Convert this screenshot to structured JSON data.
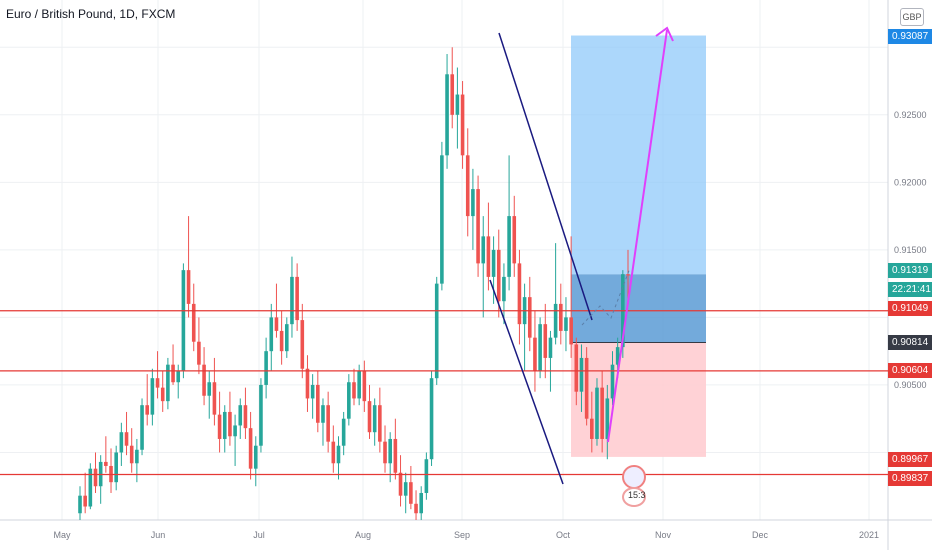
{
  "header": {
    "title": "Euro / British Pound, 1D, FXCM",
    "currency_label": "GBP"
  },
  "price_axis": {
    "ticks": [
      "0.92500",
      "0.92000",
      "0.91500",
      "0.90500"
    ],
    "top_label": "0.93087"
  },
  "time_axis": {
    "labels": [
      "May",
      "Jun",
      "Jul",
      "Aug",
      "Sep",
      "Oct",
      "Nov",
      "Dec",
      "2021"
    ]
  },
  "price_badges": [
    {
      "text": "0.91319",
      "color": "#26a69a"
    },
    {
      "text": "22:21:41",
      "color": "#26a69a"
    },
    {
      "text": "0.91049",
      "color": "#e53935"
    },
    {
      "text": "0.90814",
      "color": "#363a45"
    },
    {
      "text": "0.90604",
      "color": "#e53935"
    },
    {
      "text": "0.89967",
      "color": "#e53935"
    },
    {
      "text": "0.89837",
      "color": "#e53935"
    }
  ],
  "event_label": "15:3",
  "colors": {
    "up": "#26a69a",
    "down": "#ef5350",
    "support_line": "#e53935",
    "channel": "#1a1a80",
    "arrow": "#e040fb",
    "target_zone": "#90caf9",
    "entry_zone": "#5b9bd5",
    "stop_zone": "#ffcdd2"
  },
  "chart_data": {
    "type": "candlestick",
    "symbol": "Euro / British Pound",
    "timeframe": "1D",
    "y_range": [
      0.895,
      0.9335
    ],
    "x_labels": [
      "May",
      "Jun",
      "Jul",
      "Aug",
      "Sep",
      "Oct",
      "Nov",
      "Dec",
      "2021"
    ],
    "horizontal_levels": [
      0.91049,
      0.90604,
      0.89837
    ],
    "position": {
      "entry": 0.90814,
      "target": 0.93087,
      "stop": 0.89967,
      "current": 0.91319
    },
    "candles": [
      [
        0.8955,
        0.8975,
        0.895,
        0.8968
      ],
      [
        0.8968,
        0.8985,
        0.8955,
        0.896
      ],
      [
        0.896,
        0.8992,
        0.8958,
        0.8988
      ],
      [
        0.8988,
        0.9,
        0.897,
        0.8975
      ],
      [
        0.8975,
        0.8998,
        0.8962,
        0.8993
      ],
      [
        0.8993,
        0.9012,
        0.8985,
        0.899
      ],
      [
        0.899,
        0.9003,
        0.897,
        0.8978
      ],
      [
        0.8978,
        0.9005,
        0.8972,
        0.9
      ],
      [
        0.9,
        0.9022,
        0.899,
        0.9015
      ],
      [
        0.9015,
        0.903,
        0.8998,
        0.9005
      ],
      [
        0.9005,
        0.9018,
        0.8985,
        0.8992
      ],
      [
        0.8992,
        0.901,
        0.8978,
        0.9002
      ],
      [
        0.9002,
        0.904,
        0.8998,
        0.9035
      ],
      [
        0.9035,
        0.9058,
        0.902,
        0.9028
      ],
      [
        0.9028,
        0.9062,
        0.902,
        0.9055
      ],
      [
        0.9055,
        0.9075,
        0.904,
        0.9048
      ],
      [
        0.9048,
        0.906,
        0.903,
        0.9038
      ],
      [
        0.9038,
        0.907,
        0.9032,
        0.9065
      ],
      [
        0.9065,
        0.908,
        0.905,
        0.9052
      ],
      [
        0.9052,
        0.9065,
        0.904,
        0.906
      ],
      [
        0.906,
        0.914,
        0.9055,
        0.9135
      ],
      [
        0.9135,
        0.9175,
        0.91,
        0.911
      ],
      [
        0.911,
        0.9125,
        0.9075,
        0.9082
      ],
      [
        0.9082,
        0.91,
        0.9058,
        0.9065
      ],
      [
        0.9065,
        0.9078,
        0.9035,
        0.9042
      ],
      [
        0.9042,
        0.906,
        0.9025,
        0.9052
      ],
      [
        0.9052,
        0.907,
        0.902,
        0.9028
      ],
      [
        0.9028,
        0.9045,
        0.9,
        0.901
      ],
      [
        0.901,
        0.9035,
        0.9,
        0.903
      ],
      [
        0.903,
        0.9045,
        0.9005,
        0.9012
      ],
      [
        0.9012,
        0.9028,
        0.899,
        0.902
      ],
      [
        0.902,
        0.904,
        0.901,
        0.9035
      ],
      [
        0.9035,
        0.9048,
        0.901,
        0.9018
      ],
      [
        0.9018,
        0.903,
        0.898,
        0.8988
      ],
      [
        0.8988,
        0.9012,
        0.8975,
        0.9005
      ],
      [
        0.9005,
        0.9055,
        0.9,
        0.905
      ],
      [
        0.905,
        0.9085,
        0.904,
        0.9075
      ],
      [
        0.9075,
        0.911,
        0.906,
        0.91
      ],
      [
        0.91,
        0.9125,
        0.9085,
        0.909
      ],
      [
        0.909,
        0.9105,
        0.9065,
        0.9075
      ],
      [
        0.9075,
        0.91,
        0.907,
        0.9095
      ],
      [
        0.9095,
        0.9145,
        0.9085,
        0.913
      ],
      [
        0.913,
        0.914,
        0.909,
        0.9098
      ],
      [
        0.9098,
        0.911,
        0.9055,
        0.9062
      ],
      [
        0.9062,
        0.9072,
        0.903,
        0.904
      ],
      [
        0.904,
        0.9058,
        0.9025,
        0.905
      ],
      [
        0.905,
        0.906,
        0.9015,
        0.9022
      ],
      [
        0.9022,
        0.904,
        0.9005,
        0.9035
      ],
      [
        0.9035,
        0.9045,
        0.9,
        0.9008
      ],
      [
        0.9008,
        0.902,
        0.8985,
        0.8992
      ],
      [
        0.8992,
        0.9012,
        0.898,
        0.9005
      ],
      [
        0.9005,
        0.903,
        0.8998,
        0.9025
      ],
      [
        0.9025,
        0.9058,
        0.902,
        0.9052
      ],
      [
        0.9052,
        0.9062,
        0.9035,
        0.904
      ],
      [
        0.904,
        0.9065,
        0.9035,
        0.906
      ],
      [
        0.906,
        0.9068,
        0.903,
        0.9038
      ],
      [
        0.9038,
        0.905,
        0.901,
        0.9015
      ],
      [
        0.9015,
        0.904,
        0.9005,
        0.9035
      ],
      [
        0.9035,
        0.9048,
        0.9,
        0.9008
      ],
      [
        0.9008,
        0.902,
        0.8985,
        0.8992
      ],
      [
        0.8992,
        0.9015,
        0.8978,
        0.901
      ],
      [
        0.901,
        0.9025,
        0.898,
        0.8985
      ],
      [
        0.8985,
        0.8998,
        0.896,
        0.8968
      ],
      [
        0.8968,
        0.8985,
        0.8955,
        0.8978
      ],
      [
        0.8978,
        0.899,
        0.8958,
        0.8962
      ],
      [
        0.8962,
        0.8972,
        0.895,
        0.8955
      ],
      [
        0.8955,
        0.8975,
        0.895,
        0.897
      ],
      [
        0.897,
        0.9,
        0.8965,
        0.8995
      ],
      [
        0.8995,
        0.906,
        0.899,
        0.9055
      ],
      [
        0.9055,
        0.913,
        0.905,
        0.9125
      ],
      [
        0.9125,
        0.923,
        0.912,
        0.922
      ],
      [
        0.922,
        0.9295,
        0.921,
        0.928
      ],
      [
        0.928,
        0.93,
        0.924,
        0.925
      ],
      [
        0.925,
        0.9285,
        0.9225,
        0.9265
      ],
      [
        0.9265,
        0.9275,
        0.921,
        0.922
      ],
      [
        0.922,
        0.924,
        0.916,
        0.9175
      ],
      [
        0.9175,
        0.921,
        0.915,
        0.9195
      ],
      [
        0.9195,
        0.9205,
        0.913,
        0.914
      ],
      [
        0.914,
        0.9175,
        0.91,
        0.916
      ],
      [
        0.916,
        0.9185,
        0.912,
        0.913
      ],
      [
        0.913,
        0.916,
        0.911,
        0.915
      ],
      [
        0.915,
        0.9165,
        0.91,
        0.9112
      ],
      [
        0.9112,
        0.914,
        0.9095,
        0.913
      ],
      [
        0.913,
        0.922,
        0.912,
        0.9175
      ],
      [
        0.9175,
        0.919,
        0.913,
        0.914
      ],
      [
        0.914,
        0.915,
        0.908,
        0.9095
      ],
      [
        0.9095,
        0.9125,
        0.906,
        0.9115
      ],
      [
        0.9115,
        0.913,
        0.9075,
        0.9085
      ],
      [
        0.9085,
        0.9105,
        0.9045,
        0.906
      ],
      [
        0.906,
        0.91,
        0.9055,
        0.9095
      ],
      [
        0.9095,
        0.911,
        0.9055,
        0.907
      ],
      [
        0.907,
        0.909,
        0.9045,
        0.9085
      ],
      [
        0.9085,
        0.9155,
        0.908,
        0.911
      ],
      [
        0.911,
        0.9125,
        0.908,
        0.909
      ],
      [
        0.909,
        0.9115,
        0.9075,
        0.91
      ],
      [
        0.91,
        0.916,
        0.907,
        0.908
      ],
      [
        0.908,
        0.9085,
        0.9035,
        0.9045
      ],
      [
        0.9045,
        0.908,
        0.903,
        0.907
      ],
      [
        0.907,
        0.9078,
        0.902,
        0.9025
      ],
      [
        0.9025,
        0.9045,
        0.9,
        0.901
      ],
      [
        0.901,
        0.9055,
        0.9005,
        0.9048
      ],
      [
        0.9048,
        0.906,
        0.9,
        0.901
      ],
      [
        0.901,
        0.905,
        0.8995,
        0.904
      ],
      [
        0.904,
        0.9075,
        0.9035,
        0.9065
      ],
      [
        0.9065,
        0.9085,
        0.9055,
        0.9078
      ],
      [
        0.9078,
        0.9135,
        0.907,
        0.9132
      ],
      [
        0.9132,
        0.915,
        0.911,
        0.9131
      ]
    ]
  }
}
